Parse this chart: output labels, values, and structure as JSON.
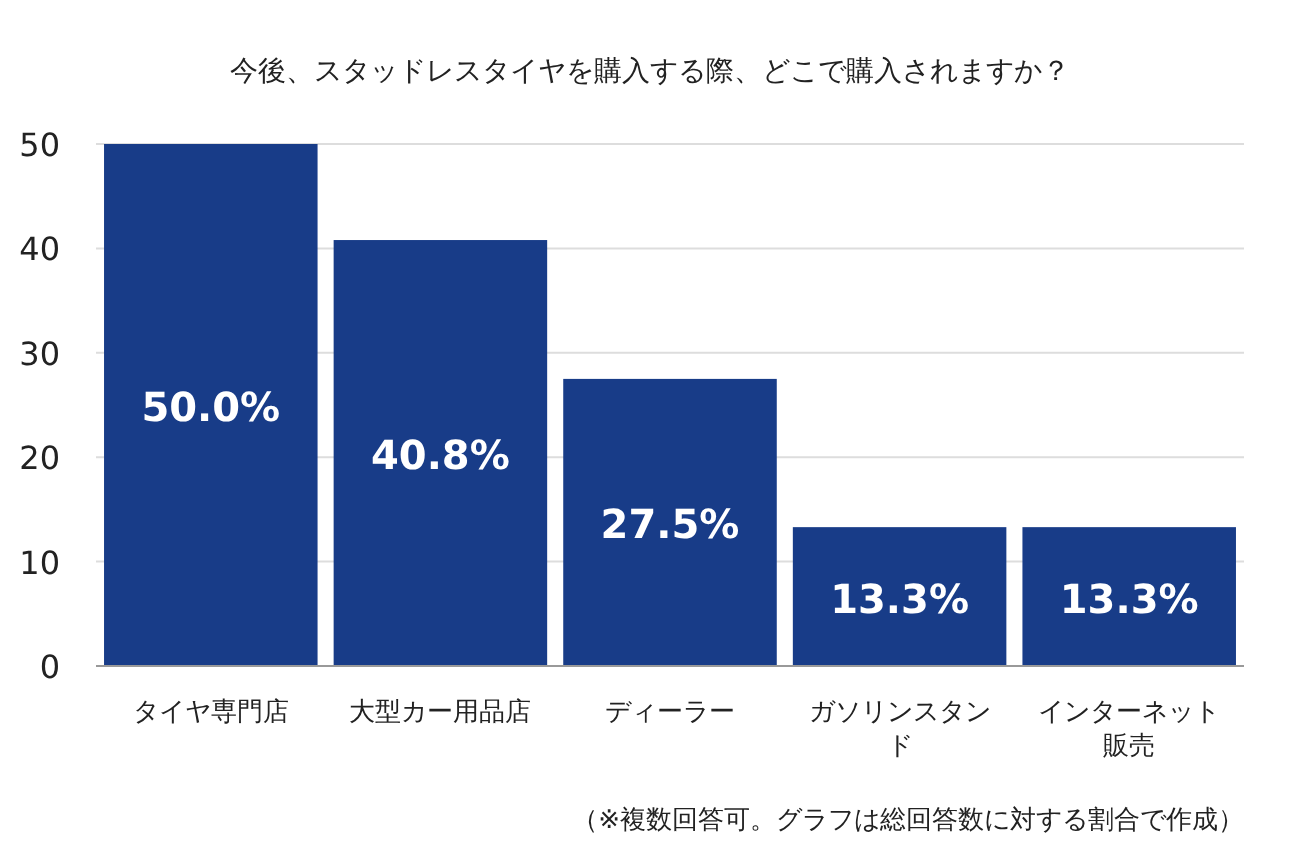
{
  "chart_data": {
    "type": "bar",
    "title": "今後、スタッドレスタイヤを購入する際、どこで購入されますか？",
    "categories": [
      "タイヤ専門店",
      "大型カー用品店",
      "ディーラー",
      "ガソリンスタンド",
      "インターネット販売"
    ],
    "values": [
      50.0,
      40.8,
      27.5,
      13.3,
      13.3
    ],
    "value_labels": [
      "50.0%",
      "40.8%",
      "27.5%",
      "13.3%",
      "13.3%"
    ],
    "color": "#183c88",
    "ylim": [
      0,
      50
    ],
    "yticks": [
      0,
      10,
      20,
      30,
      40,
      50
    ],
    "grid": "y",
    "annotations": [
      "（※複数回答可。グラフは総回答数に対する割合で作成）"
    ]
  }
}
